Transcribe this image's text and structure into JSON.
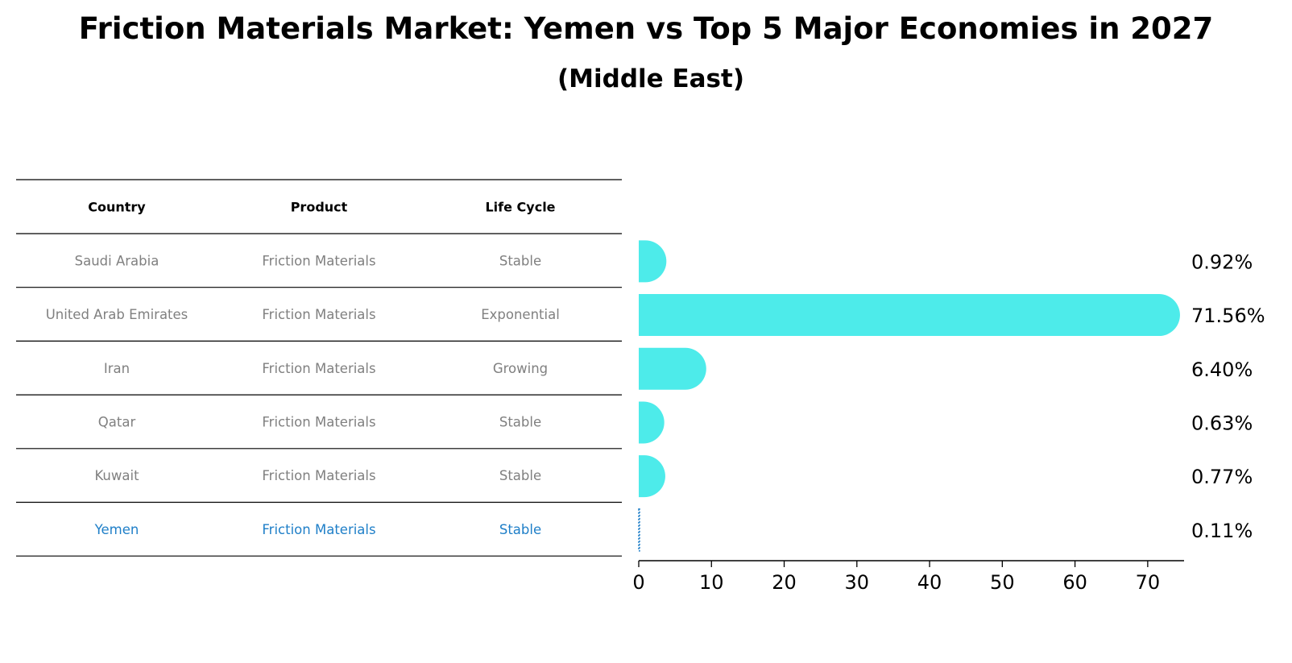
{
  "title": "Friction Materials Market: Yemen vs Top 5 Major Economies in 2027",
  "subtitle": "(Middle East)",
  "table": {
    "headers": [
      "Country",
      "Product",
      "Life Cycle"
    ],
    "rows": [
      [
        "Saudi Arabia",
        "Friction Materials",
        "Stable"
      ],
      [
        "United Arab Emirates",
        "Friction Materials",
        "Exponential"
      ],
      [
        "Iran",
        "Friction Materials",
        "Growing"
      ],
      [
        "Qatar",
        "Friction Materials",
        "Stable"
      ],
      [
        "Kuwait",
        "Friction Materials",
        "Stable"
      ],
      [
        "Yemen",
        "Friction Materials",
        "Stable"
      ]
    ],
    "highlight_row": 5
  },
  "colors": {
    "bar": "#4DEBEA",
    "highlight": "#1F7FC8",
    "muted_text": "#808080",
    "line": "#000000"
  },
  "chart_data": {
    "type": "bar",
    "orientation": "horizontal",
    "categories": [
      "Saudi Arabia",
      "United Arab Emirates",
      "Iran",
      "Qatar",
      "Kuwait",
      "Yemen"
    ],
    "values": [
      0.92,
      71.56,
      6.4,
      0.63,
      0.77,
      0.11
    ],
    "value_labels": [
      "0.92%",
      "71.56%",
      "6.40%",
      "0.63%",
      "0.77%",
      "0.11%"
    ],
    "xlim": [
      0,
      75
    ],
    "xticks": [
      0,
      10,
      20,
      30,
      40,
      50,
      60,
      70
    ],
    "title": "Friction Materials Market: Yemen vs Top 5 Major Economies in 2027",
    "subtitle": "(Middle East)",
    "xlabel": "",
    "ylabel": ""
  }
}
